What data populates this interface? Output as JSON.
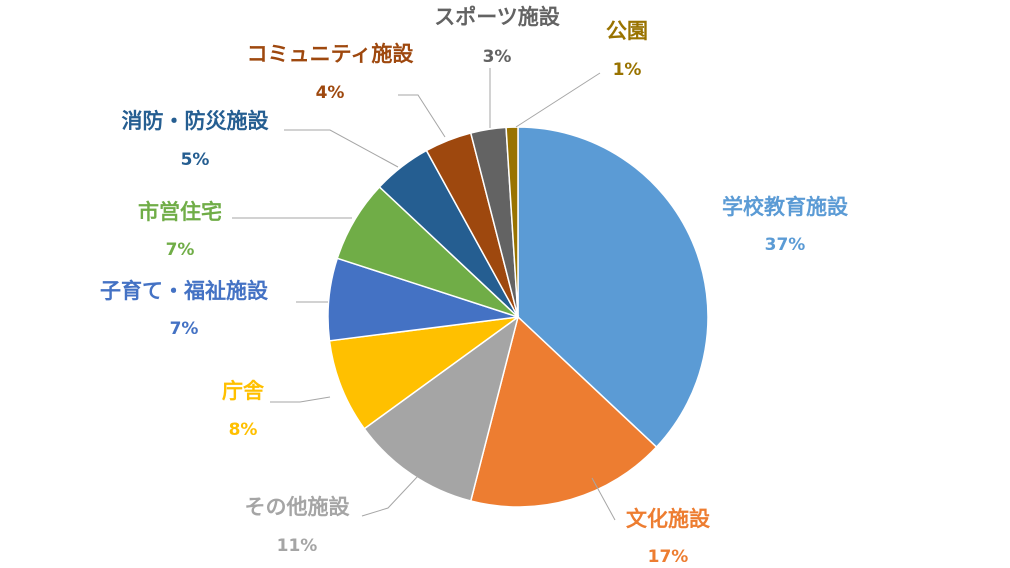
{
  "chart_data": {
    "type": "pie",
    "title": "",
    "slices": [
      {
        "label": "学校教育施設",
        "value": 37,
        "display": "37%",
        "color": "#5B9BD5"
      },
      {
        "label": "文化施設",
        "value": 17,
        "display": "17%",
        "color": "#ED7D31"
      },
      {
        "label": "その他施設",
        "value": 11,
        "display": "11%",
        "color": "#A5A5A5"
      },
      {
        "label": "庁舎",
        "value": 8,
        "display": "8%",
        "color": "#FFC000"
      },
      {
        "label": "子育て・福祉施設",
        "value": 7,
        "display": "7%",
        "color": "#4472C4"
      },
      {
        "label": "市営住宅",
        "value": 7,
        "display": "7%",
        "color": "#70AD47"
      },
      {
        "label": "消防・防災施設",
        "value": 5,
        "display": "5%",
        "color": "#255E91"
      },
      {
        "label": "コミュニティ施設",
        "value": 4,
        "display": "4%",
        "color": "#9E480E"
      },
      {
        "label": "スポーツ施設",
        "value": 3,
        "display": "3%",
        "color": "#636363"
      },
      {
        "label": "公園",
        "value": 1,
        "display": "1%",
        "color": "#997300"
      }
    ],
    "start_angle": "12 o'clock",
    "direction": "clockwise",
    "legend": "none",
    "label_position": "outside with leader lines"
  }
}
